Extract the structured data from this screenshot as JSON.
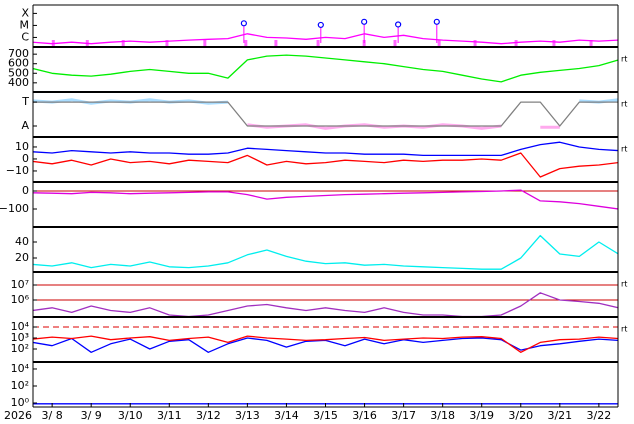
{
  "chart_data": [
    {
      "type": "line",
      "log": true,
      "ylim": [
        1.6e-07,
        0.0005
      ],
      "yticks": [
        {
          "value": 0.0001,
          "label": "X"
        },
        {
          "value": 1e-05,
          "label": "M"
        },
        {
          "value": 1e-06,
          "label": "C"
        }
      ],
      "x": [
        7.5,
        8,
        8.5,
        9,
        9.5,
        10,
        10.5,
        11,
        11.5,
        12,
        12.5,
        13,
        13.5,
        14,
        14.5,
        15,
        15.5,
        16,
        16.5,
        17,
        17.5,
        18,
        18.5,
        19,
        19.5,
        20,
        20.5,
        21,
        21.5,
        22,
        22.5
      ],
      "series": [
        {
          "color": "#ff00ff",
          "values": [
            4e-07,
            3e-07,
            4e-07,
            3e-07,
            4e-07,
            5e-07,
            4e-07,
            5e-07,
            6e-07,
            7e-07,
            8e-07,
            2e-06,
            1e-06,
            9e-07,
            7e-07,
            1e-06,
            8e-07,
            2e-06,
            1e-06,
            1.5e-06,
            8e-07,
            6e-07,
            5e-07,
            4e-07,
            3e-07,
            4e-07,
            5e-07,
            4e-07,
            6e-07,
            5e-07,
            6e-07
          ]
        },
        {
          "color": "#0000ff",
          "mode": "markers",
          "x": [
            12.91,
            14.88,
            15.99,
            16.86,
            17.85
          ],
          "values": [
            1.5e-05,
            1.1e-05,
            2e-05,
            1.2e-05,
            2e-05
          ]
        }
      ],
      "events_x": [
        8.03,
        8.9,
        9.82,
        10.94,
        11.91,
        12.96,
        13.73,
        14.81,
        15.99,
        16.78,
        17.91,
        18.83,
        19.88,
        20.85,
        21.8
      ],
      "events_color": "#ff66ff"
    },
    {
      "type": "line",
      "ylim": [
        304,
        775
      ],
      "yticks": [
        700,
        600,
        500,
        400
      ],
      "side_label": "rt",
      "x": [
        7.5,
        8,
        8.5,
        9,
        9.5,
        10,
        10.5,
        11,
        11.5,
        12,
        12.5,
        13,
        13.5,
        14,
        14.5,
        15,
        15.5,
        16,
        16.5,
        17,
        17.5,
        18,
        18.5,
        19,
        19.5,
        20,
        20.5,
        21,
        21.5,
        22,
        22.5
      ],
      "series": [
        {
          "color": "#00ee00",
          "values": [
            550,
            500,
            480,
            470,
            490,
            520,
            540,
            520,
            500,
            500,
            450,
            640,
            680,
            690,
            680,
            660,
            640,
            620,
            600,
            570,
            540,
            520,
            480,
            440,
            410,
            480,
            510,
            530,
            550,
            580,
            640
          ]
        }
      ]
    },
    {
      "type": "line",
      "ylim": [
        -0.46,
        1.42
      ],
      "yticks": [
        {
          "value": 1,
          "label": "T"
        },
        {
          "value": 0,
          "label": "A"
        }
      ],
      "side_label": "rt",
      "x": [
        7.5,
        8,
        8.5,
        9,
        9.5,
        10,
        10.5,
        11,
        11.5,
        12,
        12.5,
        13,
        13.5,
        14,
        14.5,
        15,
        15.5,
        16,
        16.5,
        17,
        17.5,
        18,
        18.5,
        19,
        19.5,
        20,
        20.5,
        21,
        21.5,
        22,
        22.5
      ],
      "series": [
        {
          "color": "#aaddff",
          "width": 3,
          "values": [
            1.05,
            1,
            1.1,
            0.95,
            1.05,
            1,
            1.1,
            1,
            1.05,
            0.95,
            1,
            null,
            null,
            null,
            null,
            null,
            null,
            null,
            null,
            null,
            null,
            null,
            null,
            null,
            null,
            1,
            null,
            null,
            1.05,
            1,
            1.1
          ]
        },
        {
          "color": "#ffaaee",
          "width": 3,
          "values": [
            null,
            null,
            null,
            null,
            null,
            null,
            null,
            null,
            null,
            null,
            null,
            0.05,
            -0.05,
            0,
            0.05,
            -0.1,
            0,
            0.05,
            -0.05,
            0,
            -0.05,
            0.05,
            0,
            -0.1,
            0,
            null,
            -0.05,
            -0.05,
            null,
            null,
            null
          ]
        },
        {
          "color": "#808080",
          "values": [
            1,
            1,
            1,
            1,
            1,
            1,
            1,
            1,
            1,
            1,
            1,
            0,
            0,
            0,
            0,
            0,
            0,
            0,
            0,
            0,
            0,
            0,
            0,
            0,
            0,
            1,
            1,
            0,
            1,
            1,
            1
          ]
        }
      ]
    },
    {
      "type": "line",
      "ylim": [
        -19.2,
        18.3
      ],
      "yticks": [
        10,
        0,
        {
          "value": -10,
          "label": "−10"
        }
      ],
      "side_label": "rt",
      "x": [
        7.5,
        8,
        8.5,
        9,
        9.5,
        10,
        10.5,
        11,
        11.5,
        12,
        12.5,
        13,
        13.5,
        14,
        14.5,
        15,
        15.5,
        16,
        16.5,
        17,
        17.5,
        18,
        18.5,
        19,
        19.5,
        20,
        20.5,
        21,
        21.5,
        22,
        22.5
      ],
      "series": [
        {
          "color": "#0000ff",
          "values": [
            6,
            5,
            7,
            6,
            5,
            6,
            5,
            5,
            4,
            4,
            5,
            9,
            8,
            7,
            6,
            5,
            5,
            4,
            4,
            4,
            3,
            3,
            3,
            3,
            3,
            8,
            12,
            14,
            10,
            8,
            7
          ]
        },
        {
          "color": "#ff0000",
          "values": [
            -2,
            -4,
            -1,
            -5,
            0,
            -3,
            -2,
            -4,
            -1,
            -2,
            -3,
            3,
            -5,
            -2,
            -4,
            -3,
            -1,
            -2,
            -3,
            -1,
            -2,
            -1,
            -1,
            0,
            -1,
            5,
            -15,
            -8,
            -6,
            -5,
            -3
          ]
        }
      ]
    },
    {
      "type": "line",
      "ylim": [
        -200,
        50
      ],
      "yticks": [
        0,
        {
          "value": -100,
          "label": "−100"
        }
      ],
      "reference_lines": [
        0
      ],
      "reference_color": "#cc0000",
      "x": [
        7.5,
        8,
        8.5,
        9,
        9.5,
        10,
        10.5,
        11,
        11.5,
        12,
        12.5,
        13,
        13.5,
        14,
        14.5,
        15,
        15.5,
        16,
        16.5,
        17,
        17.5,
        18,
        18.5,
        19,
        19.5,
        20,
        20.5,
        21,
        21.5,
        22,
        22.5
      ],
      "series": [
        {
          "color": "#dd00dd",
          "values": [
            -10,
            -12,
            -15,
            -8,
            -10,
            -15,
            -12,
            -10,
            -8,
            -5,
            -5,
            -20,
            -45,
            -35,
            -30,
            -25,
            -20,
            -18,
            -15,
            -12,
            -10,
            -8,
            -5,
            -3,
            0,
            5,
            -55,
            -60,
            -70,
            -85,
            -100
          ]
        }
      ]
    },
    {
      "type": "line",
      "ylim": [
        2.5,
        58.75
      ],
      "yticks": [
        40,
        20
      ],
      "x": [
        7.5,
        8,
        8.5,
        9,
        9.5,
        10,
        10.5,
        11,
        11.5,
        12,
        12.5,
        13,
        13.5,
        14,
        14.5,
        15,
        15.5,
        16,
        16.5,
        17,
        17.5,
        18,
        18.5,
        19,
        19.5,
        20,
        20.5,
        21,
        21.5,
        22,
        22.5
      ],
      "series": [
        {
          "color": "#00eeee",
          "values": [
            12,
            10,
            14,
            8,
            12,
            10,
            15,
            9,
            8,
            10,
            14,
            24,
            30,
            22,
            16,
            13,
            14,
            11,
            12,
            10,
            9,
            8,
            7,
            6,
            6,
            20,
            48,
            25,
            22,
            40,
            25
          ]
        }
      ]
    },
    {
      "type": "line",
      "log": true,
      "ylim": [
        73600,
        73600000
      ],
      "yticks": [
        {
          "value": 10000000,
          "label": "10⁷"
        },
        {
          "value": 1000000,
          "label": "10⁶"
        }
      ],
      "side_label": "rt",
      "reference_lines": [
        10000000,
        1000000
      ],
      "reference_color": "#cc0000",
      "x": [
        7.5,
        8,
        8.5,
        9,
        9.5,
        10,
        10.5,
        11,
        11.5,
        12,
        12.5,
        13,
        13.5,
        14,
        14.5,
        15,
        15.5,
        16,
        16.5,
        17,
        17.5,
        18,
        18.5,
        19,
        19.5,
        20,
        20.5,
        21,
        21.5,
        22,
        22.5
      ],
      "series": [
        {
          "color": "#a030c0",
          "values": [
            200000,
            300000,
            150000,
            400000,
            200000,
            150000,
            300000,
            100000,
            80000,
            100000,
            200000,
            400000,
            500000,
            300000,
            200000,
            300000,
            200000,
            150000,
            300000,
            150000,
            100000,
            100000,
            80000,
            80000,
            100000,
            400000,
            3000000,
            1000000,
            800000,
            600000,
            300000
          ]
        }
      ]
    },
    {
      "type": "line",
      "log": true,
      "ylim": [
        6.6,
        81000
      ],
      "yticks": [
        {
          "value": 10000,
          "label": "10⁴"
        },
        {
          "value": 1000,
          "label": "10³"
        },
        {
          "value": 100,
          "label": "10²"
        }
      ],
      "side_label": "rt",
      "reference_lines": [
        10000
      ],
      "reference_color": "#dd0000",
      "reference_dash": true,
      "x": [
        7.5,
        8,
        8.5,
        9,
        9.5,
        10,
        10.5,
        11,
        11.5,
        12,
        12.5,
        13,
        13.5,
        14,
        14.5,
        15,
        15.5,
        16,
        16.5,
        17,
        17.5,
        18,
        18.5,
        19,
        19.5,
        20,
        20.5,
        21,
        21.5,
        22,
        22.5
      ],
      "series": [
        {
          "color": "#0000ff",
          "values": [
            400,
            200,
            900,
            50,
            300,
            800,
            100,
            500,
            700,
            50,
            300,
            1000,
            600,
            150,
            500,
            600,
            200,
            800,
            300,
            700,
            400,
            600,
            900,
            1000,
            700,
            80,
            200,
            300,
            500,
            800,
            600
          ]
        },
        {
          "color": "#ff0000",
          "values": [
            800,
            1200,
            900,
            1500,
            700,
            1000,
            1300,
            600,
            900,
            1200,
            400,
            1500,
            1000,
            800,
            600,
            700,
            900,
            1100,
            600,
            800,
            1000,
            900,
            1200,
            1300,
            900,
            50,
            400,
            700,
            800,
            1200,
            900
          ]
        }
      ]
    },
    {
      "type": "line",
      "log": true,
      "ylim": [
        0.34,
        66000
      ],
      "yticks": [
        {
          "value": 10000,
          "label": "10⁴"
        },
        {
          "value": 100,
          "label": "10²"
        },
        {
          "value": 1,
          "label": "10⁰"
        }
      ],
      "x": [
        7.5,
        8,
        8.5,
        9,
        9.5,
        10,
        10.5,
        11,
        11.5,
        12,
        12.5,
        13,
        13.5,
        14,
        14.5,
        15,
        15.5,
        16,
        16.5,
        17,
        17.5,
        18,
        18.5,
        19,
        19.5,
        20,
        20.5,
        21,
        21.5,
        22,
        22.5
      ],
      "series": [
        {
          "color": "#0000ff",
          "values": [
            0.8,
            0.8,
            0.8,
            0.8,
            0.8,
            0.8,
            0.8,
            0.8,
            0.8,
            0.8,
            0.8,
            0.8,
            0.8,
            0.8,
            0.8,
            0.8,
            0.8,
            0.8,
            0.8,
            0.8,
            0.8,
            0.8,
            0.8,
            0.8,
            0.8,
            0.8,
            0.8,
            0.8,
            0.8,
            0.8,
            0.8
          ]
        }
      ],
      "xlim": [
        7.51,
        22.49
      ],
      "xlabel": "2026",
      "xticks": [
        {
          "value": 8,
          "label": "3/ 8"
        },
        {
          "value": 9,
          "label": "3/ 9"
        },
        {
          "value": 10,
          "label": "3/10"
        },
        {
          "value": 11,
          "label": "3/11"
        },
        {
          "value": 12,
          "label": "3/12"
        },
        {
          "value": 13,
          "label": "3/13"
        },
        {
          "value": 14,
          "label": "3/14"
        },
        {
          "value": 15,
          "label": "3/15"
        },
        {
          "value": 16,
          "label": "3/16"
        },
        {
          "value": 17,
          "label": "3/17"
        },
        {
          "value": 18,
          "label": "3/18"
        },
        {
          "value": 19,
          "label": "3/19"
        },
        {
          "value": 20,
          "label": "3/20"
        },
        {
          "value": 21,
          "label": "3/21"
        },
        {
          "value": 22,
          "label": "3/22"
        }
      ]
    }
  ]
}
